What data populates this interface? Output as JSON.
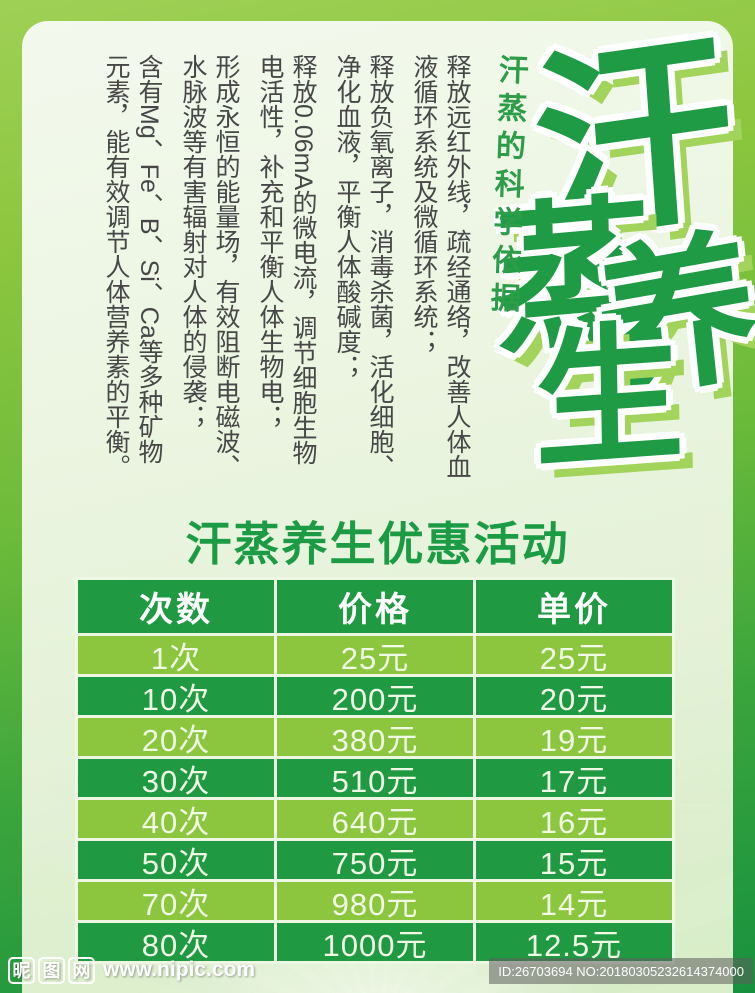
{
  "title": {
    "chars": [
      "汗",
      "蒸",
      "养",
      "生"
    ]
  },
  "subtitle": {
    "text": "汗蒸的科学依据"
  },
  "body": {
    "paragraphs": [
      "释放远红外线，疏经通络，改善人体血液循环系统及微循环系统；",
      "释放负氧离子，消毒杀菌，活化细胞、净化血液，平衡人体酸碱度；",
      "释放0.06mA的微电流，调节细胞生物电活性，补充和平衡人体生物电；",
      "形成永恒的能量场，有效阻断电磁波、水脉波等有害辐射对人体的侵袭；",
      "含有Mg、Fe、B、Si、Ca等多种矿物元素，能有效调节人体营养素的平衡。"
    ]
  },
  "promo": {
    "heading": "汗蒸养生优惠活动"
  },
  "table": {
    "headers": [
      "次数",
      "价格",
      "单价"
    ],
    "rows": [
      [
        "1次",
        "25元",
        "25元"
      ],
      [
        "10次",
        "200元",
        "20元"
      ],
      [
        "20次",
        "380元",
        "19元"
      ],
      [
        "30次",
        "510元",
        "17元"
      ],
      [
        "40次",
        "640元",
        "16元"
      ],
      [
        "50次",
        "750元",
        "15元"
      ],
      [
        "70次",
        "980元",
        "14元"
      ],
      [
        "80次",
        "1000元",
        "12.5元"
      ]
    ]
  },
  "watermark": {
    "logo_chars": [
      "昵",
      "图",
      "网"
    ],
    "site_url": "www.nipic.com",
    "id_text": "ID:26703694 NO:20180305232614374000"
  },
  "colors": {
    "dark_green": "#1f9a43",
    "light_green": "#8cc63f",
    "heading_green": "#1c9b45",
    "title_green": "#1f9b46",
    "subtitle_green": "#2e9d4a",
    "body_text": "#474747"
  }
}
